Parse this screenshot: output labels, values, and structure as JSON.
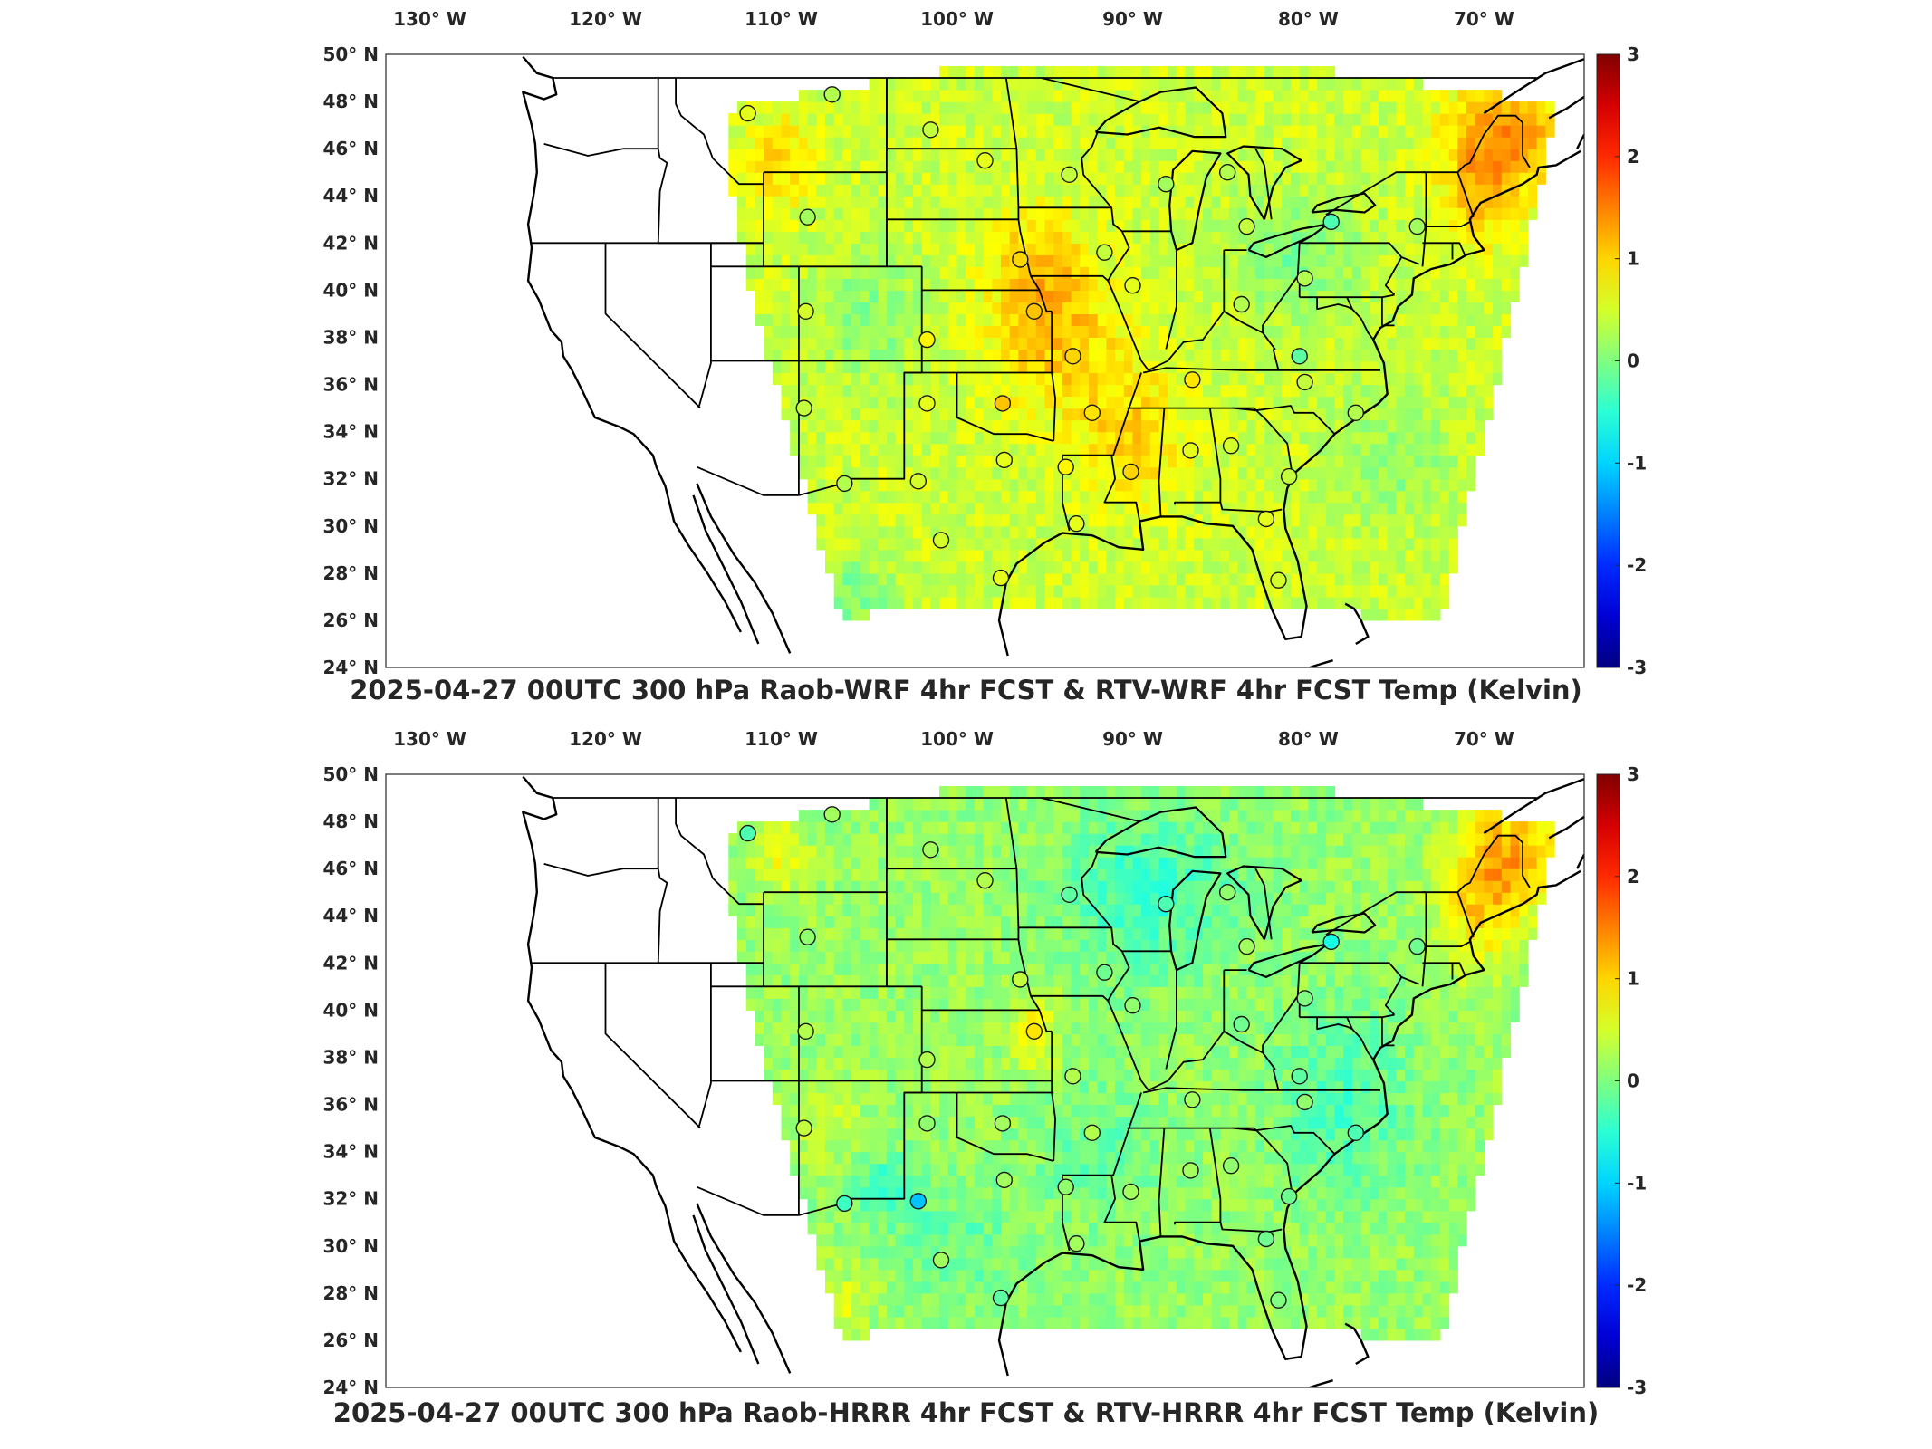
{
  "panels": [
    {
      "title": "2025-04-27 00UTC 300 hPa Raob-WRF 4hr FCST & RTV-WRF 4hr FCST Temp (Kelvin)",
      "theme": "warm",
      "stations": [
        {
          "lon": -111.9,
          "lat": 47.5,
          "diff": 0.6
        },
        {
          "lon": -107.1,
          "lat": 48.3,
          "diff": 0.3
        },
        {
          "lon": -101.5,
          "lat": 46.8,
          "diff": 0.4
        },
        {
          "lon": -98.4,
          "lat": 45.5,
          "diff": 0.6
        },
        {
          "lon": -93.6,
          "lat": 44.9,
          "diff": 0.4
        },
        {
          "lon": -88.1,
          "lat": 44.5,
          "diff": 0.2
        },
        {
          "lon": -84.6,
          "lat": 45.0,
          "diff": 0.3
        },
        {
          "lon": -83.5,
          "lat": 42.7,
          "diff": 0.4
        },
        {
          "lon": -78.7,
          "lat": 42.9,
          "diff": -0.3
        },
        {
          "lon": -73.8,
          "lat": 42.7,
          "diff": 0.2
        },
        {
          "lon": -108.5,
          "lat": 43.1,
          "diff": 0.2
        },
        {
          "lon": -96.4,
          "lat": 41.3,
          "diff": 1.0
        },
        {
          "lon": -91.6,
          "lat": 41.6,
          "diff": 0.4
        },
        {
          "lon": -80.2,
          "lat": 40.5,
          "diff": 0.3
        },
        {
          "lon": -108.6,
          "lat": 39.1,
          "diff": 0.5
        },
        {
          "lon": -101.7,
          "lat": 37.9,
          "diff": 0.8
        },
        {
          "lon": -95.6,
          "lat": 39.1,
          "diff": 1.1
        },
        {
          "lon": -90.0,
          "lat": 40.2,
          "diff": 0.6
        },
        {
          "lon": -83.8,
          "lat": 39.4,
          "diff": 0.3
        },
        {
          "lon": -80.5,
          "lat": 37.2,
          "diff": -0.2
        },
        {
          "lon": -93.4,
          "lat": 37.2,
          "diff": 1.0
        },
        {
          "lon": -86.6,
          "lat": 36.2,
          "diff": 0.9
        },
        {
          "lon": -80.2,
          "lat": 36.1,
          "diff": 0.4
        },
        {
          "lon": -108.7,
          "lat": 35.0,
          "diff": 0.4
        },
        {
          "lon": -101.7,
          "lat": 35.2,
          "diff": 0.6
        },
        {
          "lon": -97.4,
          "lat": 35.2,
          "diff": 1.1
        },
        {
          "lon": -92.3,
          "lat": 34.8,
          "diff": 0.9
        },
        {
          "lon": -77.3,
          "lat": 34.8,
          "diff": 0.3
        },
        {
          "lon": -97.3,
          "lat": 32.8,
          "diff": 0.6
        },
        {
          "lon": -93.8,
          "lat": 32.5,
          "diff": 0.8
        },
        {
          "lon": -90.1,
          "lat": 32.3,
          "diff": 1.0
        },
        {
          "lon": -86.7,
          "lat": 33.2,
          "diff": 0.6
        },
        {
          "lon": -84.4,
          "lat": 33.4,
          "diff": 0.5
        },
        {
          "lon": -81.1,
          "lat": 32.1,
          "diff": 0.4
        },
        {
          "lon": -106.4,
          "lat": 31.8,
          "diff": 0.3
        },
        {
          "lon": -102.2,
          "lat": 31.9,
          "diff": 0.5
        },
        {
          "lon": -100.9,
          "lat": 29.4,
          "diff": 0.5
        },
        {
          "lon": -97.5,
          "lat": 27.8,
          "diff": 0.6
        },
        {
          "lon": -93.2,
          "lat": 30.1,
          "diff": 0.6
        },
        {
          "lon": -82.4,
          "lat": 30.3,
          "diff": 0.6
        },
        {
          "lon": -81.7,
          "lat": 27.7,
          "diff": 0.5
        }
      ]
    },
    {
      "title": "2025-04-27 00UTC 300 hPa Raob-HRRR 4hr FCST & RTV-HRRR 4hr FCST Temp (Kelvin)",
      "theme": "cool",
      "stations": [
        {
          "lon": -111.9,
          "lat": 47.5,
          "diff": -0.3
        },
        {
          "lon": -107.1,
          "lat": 48.3,
          "diff": 0.2
        },
        {
          "lon": -101.5,
          "lat": 46.8,
          "diff": 0.2
        },
        {
          "lon": -98.4,
          "lat": 45.5,
          "diff": 0.3
        },
        {
          "lon": -93.6,
          "lat": 44.9,
          "diff": -0.2
        },
        {
          "lon": -88.1,
          "lat": 44.5,
          "diff": -0.3
        },
        {
          "lon": -84.6,
          "lat": 45.0,
          "diff": 0.1
        },
        {
          "lon": -83.5,
          "lat": 42.7,
          "diff": 0.2
        },
        {
          "lon": -78.7,
          "lat": 42.9,
          "diff": -0.6
        },
        {
          "lon": -73.8,
          "lat": 42.7,
          "diff": -0.1
        },
        {
          "lon": -108.5,
          "lat": 43.1,
          "diff": 0.1
        },
        {
          "lon": -96.4,
          "lat": 41.3,
          "diff": 0.4
        },
        {
          "lon": -91.6,
          "lat": 41.6,
          "diff": -0.1
        },
        {
          "lon": -80.2,
          "lat": 40.5,
          "diff": 0.0
        },
        {
          "lon": -108.6,
          "lat": 39.1,
          "diff": 0.3
        },
        {
          "lon": -101.7,
          "lat": 37.9,
          "diff": 0.3
        },
        {
          "lon": -95.6,
          "lat": 39.1,
          "diff": 0.9
        },
        {
          "lon": -90.0,
          "lat": 40.2,
          "diff": 0.1
        },
        {
          "lon": -83.8,
          "lat": 39.4,
          "diff": -0.1
        },
        {
          "lon": -80.5,
          "lat": 37.2,
          "diff": -0.2
        },
        {
          "lon": -93.4,
          "lat": 37.2,
          "diff": 0.3
        },
        {
          "lon": -86.6,
          "lat": 36.2,
          "diff": 0.2
        },
        {
          "lon": -80.2,
          "lat": 36.1,
          "diff": 0.1
        },
        {
          "lon": -108.7,
          "lat": 35.0,
          "diff": 0.4
        },
        {
          "lon": -101.7,
          "lat": 35.2,
          "diff": 0.1
        },
        {
          "lon": -97.4,
          "lat": 35.2,
          "diff": 0.2
        },
        {
          "lon": -92.3,
          "lat": 34.8,
          "diff": 0.3
        },
        {
          "lon": -77.3,
          "lat": 34.8,
          "diff": -0.3
        },
        {
          "lon": -97.3,
          "lat": 32.8,
          "diff": 0.2
        },
        {
          "lon": -93.8,
          "lat": 32.5,
          "diff": 0.1
        },
        {
          "lon": -90.1,
          "lat": 32.3,
          "diff": 0.2
        },
        {
          "lon": -86.7,
          "lat": 33.2,
          "diff": 0.2
        },
        {
          "lon": -84.4,
          "lat": 33.4,
          "diff": 0.1
        },
        {
          "lon": -81.1,
          "lat": 32.1,
          "diff": -0.1
        },
        {
          "lon": -106.4,
          "lat": 31.8,
          "diff": -0.4
        },
        {
          "lon": -102.2,
          "lat": 31.9,
          "diff": -1.1
        },
        {
          "lon": -100.9,
          "lat": 29.4,
          "diff": 0.2
        },
        {
          "lon": -97.5,
          "lat": 27.8,
          "diff": -0.2
        },
        {
          "lon": -93.2,
          "lat": 30.1,
          "diff": 0.2
        },
        {
          "lon": -82.4,
          "lat": 30.3,
          "diff": -0.1
        },
        {
          "lon": -81.7,
          "lat": 27.7,
          "diff": 0.0
        }
      ]
    }
  ],
  "lon_ticks": [
    -130,
    -120,
    -110,
    -100,
    -90,
    -80,
    -70
  ],
  "lon_tick_labels": [
    "130° W",
    "120° W",
    "110° W",
    "100° W",
    "90° W",
    "80° W",
    "70° W"
  ],
  "lat_ticks": [
    50,
    48,
    46,
    44,
    42,
    40,
    38,
    36,
    34,
    32,
    30,
    28,
    26,
    24
  ],
  "lat_tick_labels": [
    "50° N",
    "48° N",
    "46° N",
    "44° N",
    "42° N",
    "40° N",
    "38° N",
    "36° N",
    "34° N",
    "32° N",
    "30° N",
    "28° N",
    "26° N",
    "24° N"
  ],
  "colorbar": {
    "min": -3,
    "max": 3,
    "ticks": [
      "3",
      "2",
      "1",
      "0",
      "-1",
      "-2",
      "-3"
    ],
    "colormap": "jet"
  },
  "colors": {
    "coast": "#000000",
    "frame": "#262626",
    "background": "#ffffff"
  }
}
